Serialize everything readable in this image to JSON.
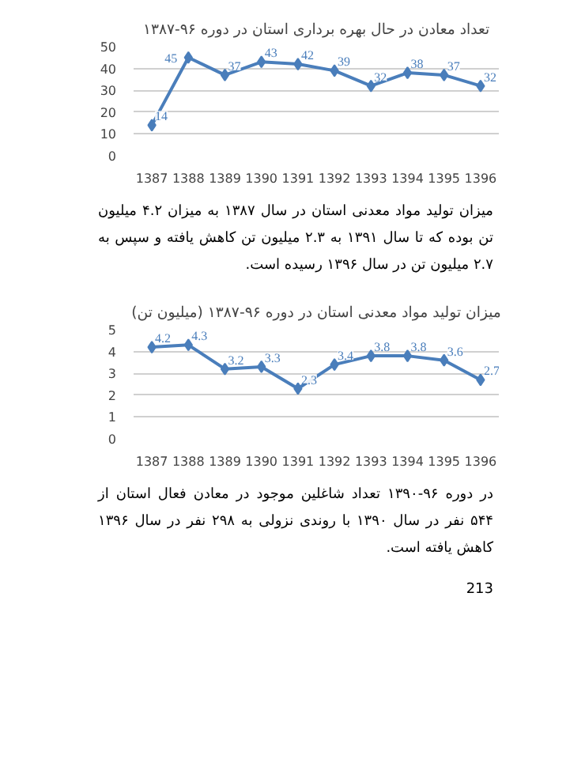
{
  "chart_data": [
    {
      "type": "line",
      "title": "تعداد معادن در حال بهره برداری استان در دوره ۹۶-۱۳۸۷",
      "categories": [
        "1387",
        "1388",
        "1389",
        "1390",
        "1391",
        "1392",
        "1393",
        "1394",
        "1395",
        "1396"
      ],
      "values": [
        14,
        45,
        37,
        43,
        42,
        39,
        32,
        38,
        37,
        32
      ],
      "color": "#4a7ebb",
      "ylim": [
        0,
        50
      ],
      "yticks": [
        0,
        10,
        20,
        30,
        40,
        50
      ],
      "grid": "y",
      "marker": "diamond",
      "data_labels": true,
      "annotations": [
        "میزان تولید مواد معدنی استان در سال ۱۳۸۷ به میزان ۴.۲ میلیون تن بوده که تا سال ۱۳۹۱ به ۲.۳ میلیون تن کاهش یافته و سپس به ۲.۷ میلیون تن در سال ۱۳۹۶ رسیده است."
      ]
    },
    {
      "type": "line",
      "title": "میزان تولید مواد معدنی استان در دوره ۹۶-۱۳۸۷ (میلیون تن)",
      "categories": [
        "1387",
        "1388",
        "1389",
        "1390",
        "1391",
        "1392",
        "1393",
        "1394",
        "1395",
        "1396"
      ],
      "values": [
        4.2,
        4.3,
        3.2,
        3.3,
        2.3,
        3.4,
        3.8,
        3.8,
        3.6,
        2.7
      ],
      "color": "#4a7ebb",
      "ylim": [
        0,
        5
      ],
      "yticks": [
        0,
        1,
        2,
        3,
        4,
        5
      ],
      "grid": "y",
      "marker": "diamond",
      "data_labels": true,
      "annotations": [
        "در دوره ۹۶-۱۳۹۰ تعداد شاغلین موجود در معادن فعال استان از ۵۴۴ نفر در سال ۱۳۹۰ با روندی نزولی به ۲۹۸ نفر در سال ۱۳۹۶ کاهش یافته است.",
        "213"
      ]
    }
  ]
}
